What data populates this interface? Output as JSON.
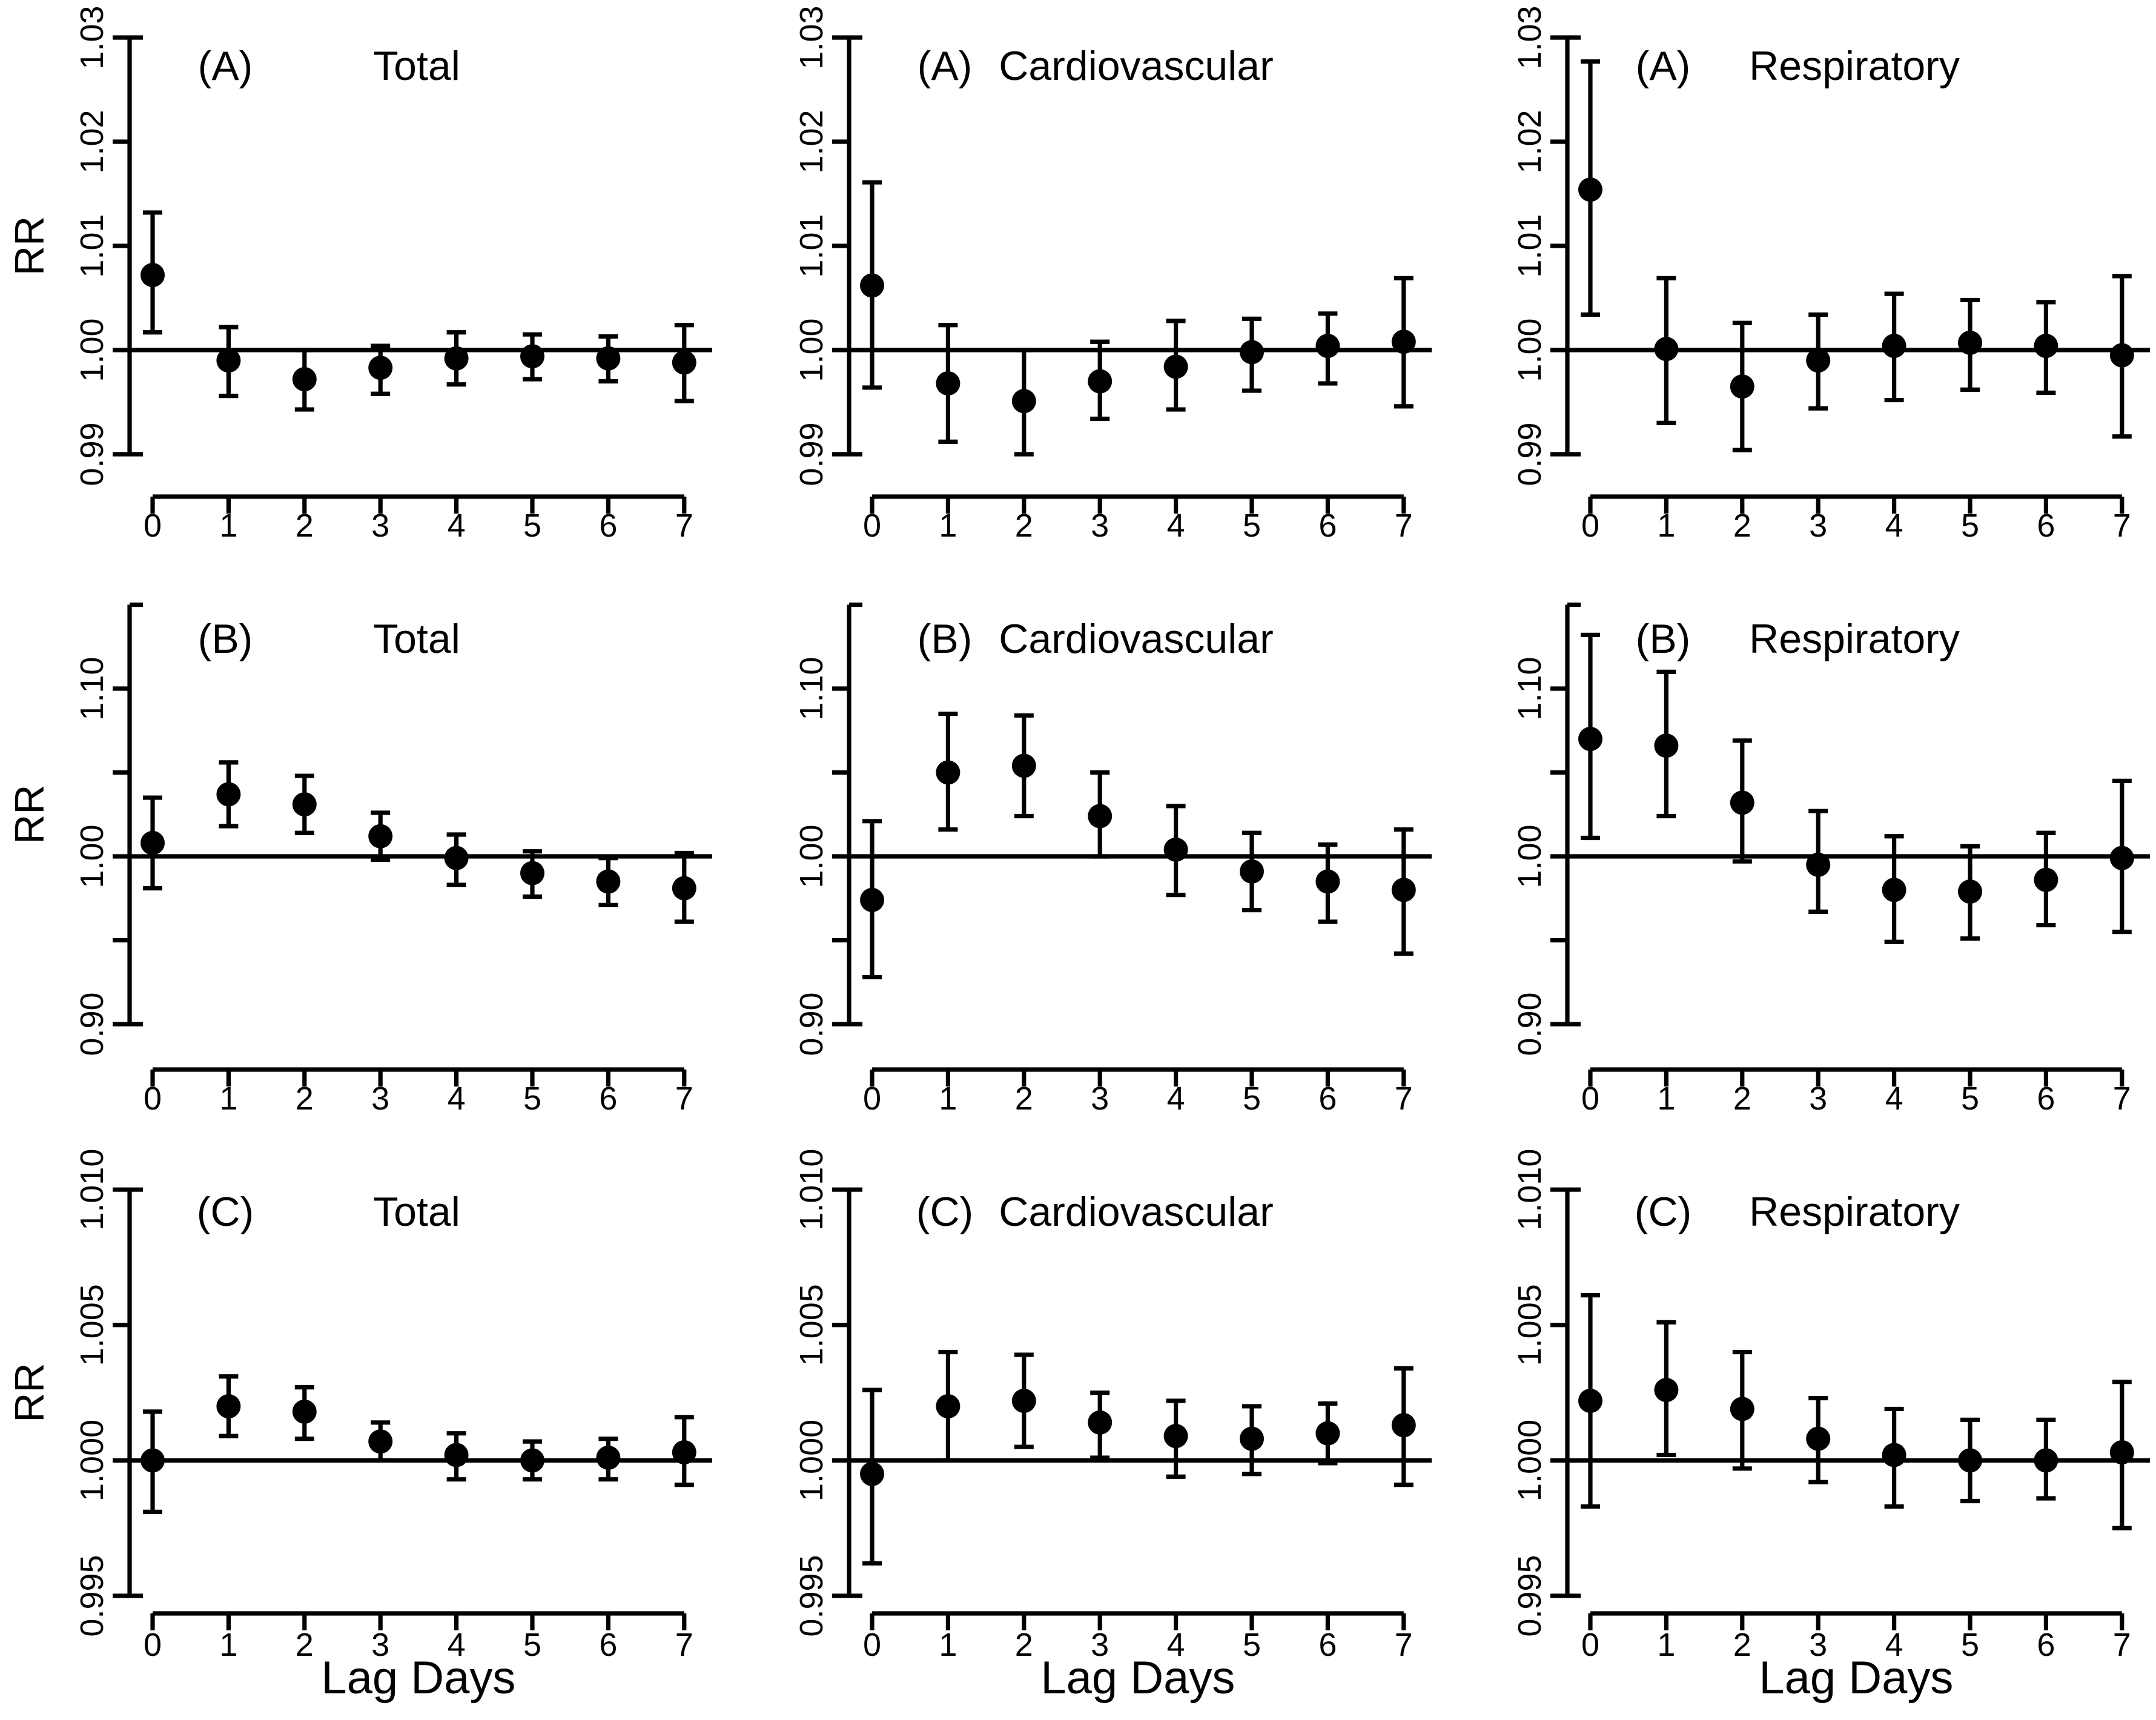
{
  "figure": {
    "background": "#ffffff",
    "ink": "#000000",
    "ylabel": "RR",
    "xlabel": "Lag Days",
    "x_tick_labels": [
      "0",
      "1",
      "2",
      "3",
      "4",
      "5",
      "6",
      "7"
    ],
    "rows": {
      "A": {
        "tick_labels": [
          "0.99",
          "1.00",
          "1.01",
          "1.02",
          "1.03"
        ],
        "tick_values": [
          0.99,
          1.0,
          1.01,
          1.02,
          1.03
        ],
        "minor_ticks": [],
        "axis_line": [
          0.99,
          1.03
        ],
        "ylim": [
          0.9865,
          1.0335
        ],
        "ref_line": 1.0,
        "grid": false
      },
      "B": {
        "tick_labels": [
          "0.90",
          "1.00",
          "1.10"
        ],
        "tick_values": [
          0.9,
          1.0,
          1.1
        ],
        "minor_ticks": [
          0.95,
          1.05
        ],
        "axis_line": [
          0.9,
          1.15
        ],
        "ylim": [
          0.893,
          1.155
        ],
        "ref_line": 1.0,
        "grid": false
      },
      "C": {
        "tick_labels": [
          "0.995",
          "1.000",
          "1.005",
          "1.010"
        ],
        "tick_values": [
          0.995,
          1.0,
          1.005,
          1.01
        ],
        "minor_ticks": [],
        "axis_line": [
          0.995,
          1.01
        ],
        "ylim": [
          0.9943,
          1.0107
        ],
        "ref_line": 1.0,
        "grid": false
      }
    }
  },
  "chart_data": [
    {
      "type": "scatter",
      "panel_label": "(A)",
      "title": "Total",
      "row": "A",
      "ylabel": "RR",
      "xlabel": "",
      "x": [
        0,
        1,
        2,
        3,
        4,
        5,
        6,
        7
      ],
      "rr": [
        1.0072,
        0.999,
        0.9972,
        0.9983,
        0.9992,
        0.9994,
        0.9992,
        0.9988
      ],
      "ci_low": [
        1.0017,
        0.9956,
        0.9943,
        0.9958,
        0.9967,
        0.9972,
        0.997,
        0.9951
      ],
      "ci_high": [
        1.0132,
        1.0022,
        1.0,
        1.0004,
        1.0017,
        1.0015,
        1.0013,
        1.0024
      ]
    },
    {
      "type": "scatter",
      "panel_label": "(A)",
      "title": "Cardiovascular",
      "row": "A",
      "ylabel": "",
      "xlabel": "",
      "x": [
        0,
        1,
        2,
        3,
        4,
        5,
        6,
        7
      ],
      "rr": [
        1.0062,
        0.9968,
        0.9951,
        0.997,
        0.9984,
        0.9998,
        1.0004,
        1.0008
      ],
      "ci_low": [
        0.9964,
        0.9912,
        0.99,
        0.9934,
        0.9943,
        0.9961,
        0.9968,
        0.9946
      ],
      "ci_high": [
        1.0161,
        1.0024,
        1.0,
        1.0008,
        1.0028,
        1.003,
        1.0035,
        1.0069
      ]
    },
    {
      "type": "scatter",
      "panel_label": "(A)",
      "title": "Respiratory",
      "row": "A",
      "ylabel": "",
      "xlabel": "",
      "x": [
        0,
        1,
        2,
        3,
        4,
        5,
        6,
        7
      ],
      "rr": [
        1.0154,
        1.0001,
        0.9965,
        0.999,
        1.0004,
        1.0007,
        1.0004,
        0.9995
      ],
      "ci_low": [
        1.0034,
        0.993,
        0.9904,
        0.9944,
        0.9952,
        0.9962,
        0.9959,
        0.9917
      ],
      "ci_high": [
        1.0277,
        1.0069,
        1.0026,
        1.0034,
        1.0054,
        1.0048,
        1.0046,
        1.0071
      ]
    },
    {
      "type": "scatter",
      "panel_label": "(B)",
      "title": "Total",
      "row": "B",
      "ylabel": "RR",
      "xlabel": "",
      "x": [
        0,
        1,
        2,
        3,
        4,
        5,
        6,
        7
      ],
      "rr": [
        1.008,
        1.037,
        1.031,
        1.012,
        0.999,
        0.99,
        0.985,
        0.981
      ],
      "ci_low": [
        0.981,
        1.018,
        1.014,
        0.998,
        0.983,
        0.976,
        0.971,
        0.961
      ],
      "ci_high": [
        1.035,
        1.056,
        1.048,
        1.026,
        1.013,
        1.003,
        0.999,
        1.002
      ]
    },
    {
      "type": "scatter",
      "panel_label": "(B)",
      "title": "Cardiovascular",
      "row": "B",
      "ylabel": "",
      "xlabel": "",
      "x": [
        0,
        1,
        2,
        3,
        4,
        5,
        6,
        7
      ],
      "rr": [
        0.974,
        1.05,
        1.054,
        1.024,
        1.004,
        0.991,
        0.985,
        0.98
      ],
      "ci_low": [
        0.928,
        1.016,
        1.024,
        1.0,
        0.977,
        0.968,
        0.961,
        0.942
      ],
      "ci_high": [
        1.021,
        1.085,
        1.084,
        1.05,
        1.03,
        1.014,
        1.007,
        1.016
      ]
    },
    {
      "type": "scatter",
      "panel_label": "(B)",
      "title": "Respiratory",
      "row": "B",
      "ylabel": "",
      "xlabel": "",
      "x": [
        0,
        1,
        2,
        3,
        4,
        5,
        6,
        7
      ],
      "rr": [
        1.07,
        1.066,
        1.032,
        0.995,
        0.98,
        0.979,
        0.986,
        0.999
      ],
      "ci_low": [
        1.011,
        1.024,
        0.997,
        0.967,
        0.949,
        0.951,
        0.959,
        0.955
      ],
      "ci_high": [
        1.132,
        1.11,
        1.069,
        1.027,
        1.012,
        1.006,
        1.014,
        1.045
      ]
    },
    {
      "type": "scatter",
      "panel_label": "(C)",
      "title": "Total",
      "row": "C",
      "ylabel": "RR",
      "xlabel": "Lag Days",
      "x": [
        0,
        1,
        2,
        3,
        4,
        5,
        6,
        7
      ],
      "rr": [
        1.0,
        1.002,
        1.0018,
        1.0007,
        1.0002,
        1.0,
        1.0001,
        1.0003
      ],
      "ci_low": [
        0.9981,
        1.0009,
        1.0008,
        1.0,
        0.9993,
        0.9993,
        0.9993,
        0.9991
      ],
      "ci_high": [
        1.0018,
        1.0031,
        1.0027,
        1.0014,
        1.001,
        1.0007,
        1.0008,
        1.0016
      ]
    },
    {
      "type": "scatter",
      "panel_label": "(C)",
      "title": "Cardiovascular",
      "row": "C",
      "ylabel": "",
      "xlabel": "Lag Days",
      "x": [
        0,
        1,
        2,
        3,
        4,
        5,
        6,
        7
      ],
      "rr": [
        0.9995,
        1.002,
        1.0022,
        1.0014,
        1.0009,
        1.0008,
        1.001,
        1.0013
      ],
      "ci_low": [
        0.9962,
        1.0,
        1.0005,
        1.0001,
        0.9994,
        0.9995,
        0.9999,
        0.9991
      ],
      "ci_high": [
        1.0026,
        1.004,
        1.0039,
        1.0025,
        1.0022,
        1.002,
        1.0021,
        1.0034
      ]
    },
    {
      "type": "scatter",
      "panel_label": "(C)",
      "title": "Respiratory",
      "row": "C",
      "ylabel": "",
      "xlabel": "Lag Days",
      "x": [
        0,
        1,
        2,
        3,
        4,
        5,
        6,
        7
      ],
      "rr": [
        1.0022,
        1.0026,
        1.0019,
        1.0008,
        1.0002,
        1.0,
        1.0,
        1.0003
      ],
      "ci_low": [
        0.9983,
        1.0002,
        0.9997,
        0.9992,
        0.9983,
        0.9985,
        0.9986,
        0.9975
      ],
      "ci_high": [
        1.0061,
        1.0051,
        1.004,
        1.0023,
        1.0019,
        1.0015,
        1.0015,
        1.0029
      ]
    }
  ]
}
